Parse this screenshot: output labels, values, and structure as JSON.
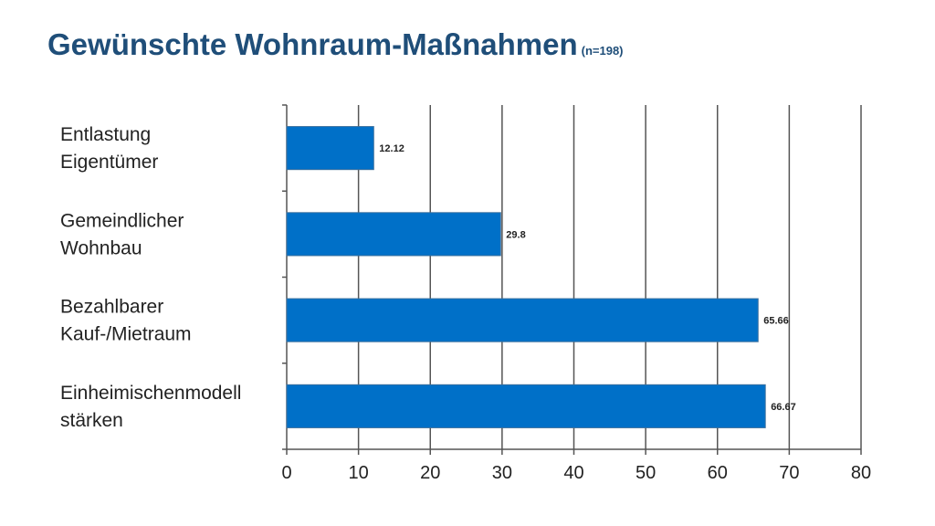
{
  "chart_data": {
    "type": "bar",
    "orientation": "horizontal",
    "title": "Gewünschte Wohnraum-Maßnahmen",
    "subtitle": "(n=198)",
    "categories": [
      [
        "Entlastung",
        "Eigentümer"
      ],
      [
        "Gemeindlicher",
        "Wohnbau"
      ],
      [
        "Bezahlbarer",
        "Kauf-/Mietraum"
      ],
      [
        "Einheimischenmodell",
        "stärken"
      ]
    ],
    "values": [
      12.12,
      29.8,
      65.66,
      66.67
    ],
    "data_labels": [
      "12.12",
      "29.8",
      "65.66",
      "66.67"
    ],
    "xlim": [
      0,
      80
    ],
    "xticks": [
      "0",
      "10",
      "20",
      "30",
      "40",
      "50",
      "60",
      "70",
      "80"
    ],
    "grid": true,
    "bar_color": "#0070c8",
    "xlabel": "",
    "ylabel": ""
  }
}
